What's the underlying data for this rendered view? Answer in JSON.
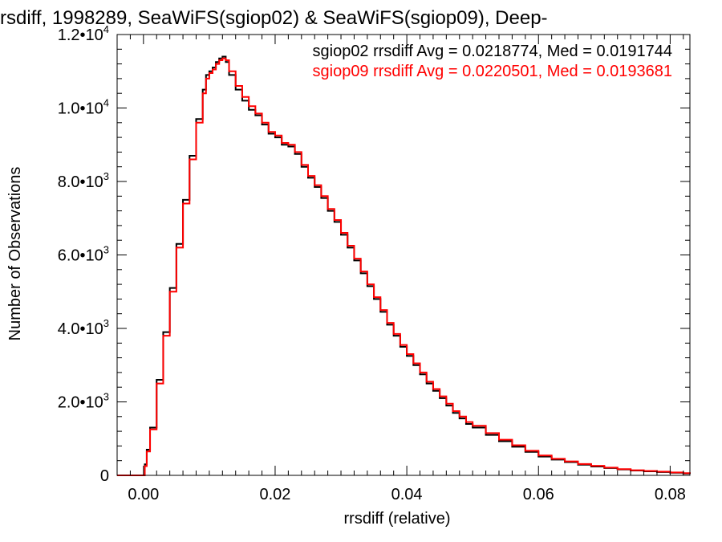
{
  "chart_data": {
    "type": "line",
    "title": "rrsdiff, 1998289, SeaWiFS(sgiop02) & SeaWiFS(sgiop09), Deep-",
    "xlabel": "rrsdiff (relative)",
    "ylabel": "Number of Observations",
    "xlim": [
      -0.004,
      0.083
    ],
    "ylim": [
      0,
      12000
    ],
    "x_ticks": [
      {
        "value": 0.0,
        "label": "0.00"
      },
      {
        "value": 0.02,
        "label": "0.02"
      },
      {
        "value": 0.04,
        "label": "0.04"
      },
      {
        "value": 0.06,
        "label": "0.06"
      },
      {
        "value": 0.08,
        "label": "0.08"
      }
    ],
    "y_ticks": [
      {
        "value": 0,
        "mantissa": "0",
        "exponent": ""
      },
      {
        "value": 2000,
        "mantissa": "2.0•10",
        "exponent": "3"
      },
      {
        "value": 4000,
        "mantissa": "4.0•10",
        "exponent": "3"
      },
      {
        "value": 6000,
        "mantissa": "6.0•10",
        "exponent": "3"
      },
      {
        "value": 8000,
        "mantissa": "8.0•10",
        "exponent": "3"
      },
      {
        "value": 10000,
        "mantissa": "1.0•10",
        "exponent": "4"
      },
      {
        "value": 12000,
        "mantissa": "1.2•10",
        "exponent": "4"
      }
    ],
    "grid": false,
    "legend": {
      "placement": "top-right",
      "entries": [
        {
          "text": "sgiop02 rrsdiff Avg = 0.0218774, Med = 0.0191744",
          "color": "#000000"
        },
        {
          "text": "sgiop09 rrsdiff Avg = 0.0220501, Med = 0.0193681",
          "color": "#ff0000"
        }
      ]
    },
    "series": [
      {
        "color": "#000000",
        "x": [
          -0.004,
          0.0,
          0.0002,
          0.0005,
          0.001,
          0.002,
          0.003,
          0.004,
          0.005,
          0.006,
          0.007,
          0.008,
          0.009,
          0.0095,
          0.01,
          0.0105,
          0.011,
          0.0115,
          0.012,
          0.0125,
          0.013,
          0.014,
          0.015,
          0.016,
          0.017,
          0.018,
          0.019,
          0.02,
          0.021,
          0.022,
          0.023,
          0.024,
          0.025,
          0.026,
          0.027,
          0.028,
          0.029,
          0.03,
          0.031,
          0.032,
          0.033,
          0.034,
          0.035,
          0.036,
          0.037,
          0.038,
          0.039,
          0.04,
          0.041,
          0.042,
          0.043,
          0.044,
          0.045,
          0.046,
          0.047,
          0.048,
          0.049,
          0.05,
          0.052,
          0.054,
          0.056,
          0.058,
          0.06,
          0.062,
          0.064,
          0.066,
          0.068,
          0.07,
          0.072,
          0.074,
          0.076,
          0.078,
          0.08,
          0.082,
          0.083
        ],
        "y": [
          0,
          0,
          300,
          700,
          1300,
          2600,
          3900,
          5100,
          6300,
          7500,
          8700,
          9700,
          10500,
          10900,
          11000,
          11100,
          11250,
          11350,
          11400,
          11250,
          10900,
          10500,
          10200,
          9950,
          9800,
          9550,
          9300,
          9200,
          9000,
          8950,
          8750,
          8400,
          8100,
          7850,
          7550,
          7200,
          6900,
          6550,
          6200,
          5850,
          5500,
          5150,
          4800,
          4450,
          4100,
          3800,
          3500,
          3250,
          3000,
          2750,
          2500,
          2300,
          2100,
          1900,
          1700,
          1550,
          1400,
          1300,
          1100,
          930,
          780,
          640,
          510,
          430,
          360,
          290,
          240,
          200,
          160,
          130,
          110,
          90,
          70,
          50,
          40
        ]
      },
      {
        "color": "#ff0000",
        "x": [
          -0.004,
          0.0,
          0.0002,
          0.0005,
          0.001,
          0.002,
          0.003,
          0.004,
          0.005,
          0.006,
          0.007,
          0.008,
          0.009,
          0.0095,
          0.01,
          0.0105,
          0.011,
          0.0115,
          0.012,
          0.0125,
          0.013,
          0.014,
          0.015,
          0.016,
          0.017,
          0.018,
          0.019,
          0.02,
          0.021,
          0.022,
          0.023,
          0.024,
          0.025,
          0.026,
          0.027,
          0.028,
          0.029,
          0.03,
          0.031,
          0.032,
          0.033,
          0.034,
          0.035,
          0.036,
          0.037,
          0.038,
          0.039,
          0.04,
          0.041,
          0.042,
          0.043,
          0.044,
          0.045,
          0.046,
          0.047,
          0.048,
          0.049,
          0.05,
          0.052,
          0.054,
          0.056,
          0.058,
          0.06,
          0.062,
          0.064,
          0.066,
          0.068,
          0.07,
          0.072,
          0.074,
          0.076,
          0.078,
          0.08,
          0.082,
          0.083
        ],
        "y": [
          0,
          0,
          250,
          650,
          1250,
          2500,
          3800,
          5000,
          6200,
          7400,
          8600,
          9600,
          10400,
          10800,
          10950,
          11050,
          11200,
          11300,
          11350,
          11300,
          11000,
          10600,
          10300,
          10050,
          9850,
          9600,
          9350,
          9250,
          9050,
          9000,
          8800,
          8450,
          8150,
          7900,
          7600,
          7250,
          6950,
          6600,
          6250,
          5900,
          5550,
          5200,
          4850,
          4500,
          4150,
          3850,
          3550,
          3300,
          3050,
          2800,
          2550,
          2350,
          2150,
          1950,
          1750,
          1600,
          1450,
          1350,
          1150,
          970,
          820,
          670,
          540,
          450,
          380,
          310,
          260,
          210,
          170,
          140,
          120,
          100,
          80,
          60,
          50
        ]
      }
    ]
  }
}
